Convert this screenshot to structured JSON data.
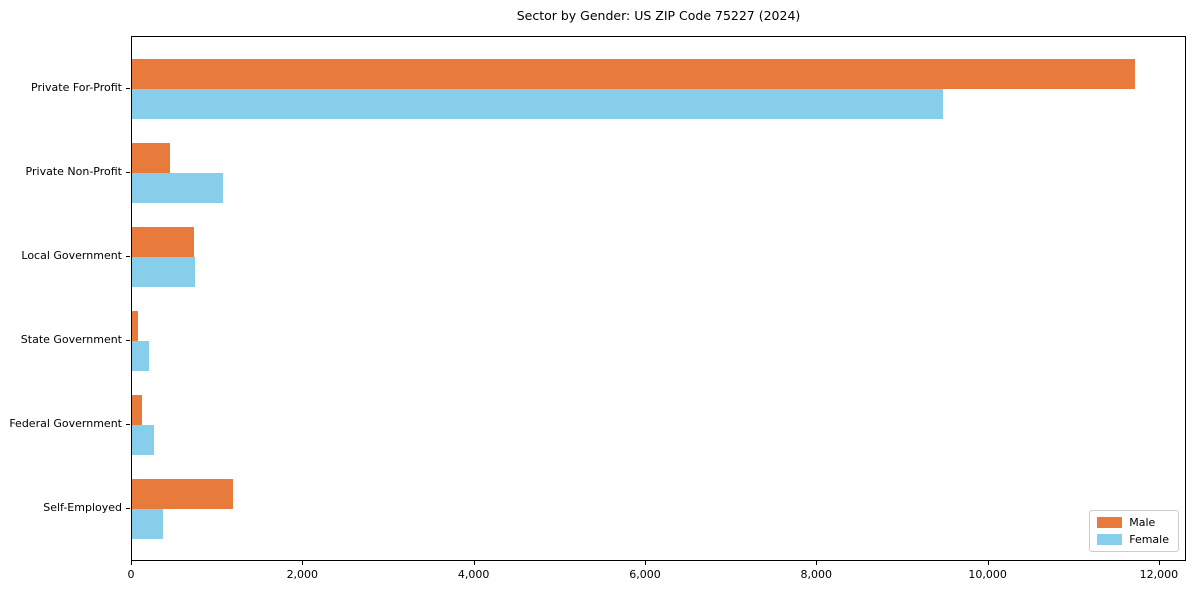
{
  "title": "Sector by Gender: US ZIP Code 75227 (2024)",
  "chart_data": {
    "type": "bar",
    "orientation": "horizontal",
    "title": "Sector by Gender: US ZIP Code 75227 (2024)",
    "xlabel": "",
    "ylabel": "",
    "categories": [
      "Private For-Profit",
      "Private Non-Profit",
      "Local Government",
      "State Government",
      "Federal Government",
      "Self-Employed"
    ],
    "series": [
      {
        "name": "Male",
        "color": "#e87b3c",
        "values": [
          11730,
          440,
          720,
          70,
          120,
          1180
        ]
      },
      {
        "name": "Female",
        "color": "#87ceeb",
        "values": [
          9480,
          1070,
          740,
          200,
          260,
          360
        ]
      }
    ],
    "xlim": [
      0,
      12316
    ],
    "xticks": [
      0,
      2000,
      4000,
      6000,
      8000,
      10000,
      12000
    ],
    "xtick_labels": [
      "0",
      "2,000",
      "4,000",
      "6,000",
      "8,000",
      "10,000",
      "12,000"
    ],
    "legend_position": "lower right",
    "grid": false,
    "background": "#ffffff",
    "axis_color": "#000000"
  },
  "legend": {
    "items": [
      {
        "label": "Male",
        "color": "#e87b3c"
      },
      {
        "label": "Female",
        "color": "#87ceeb"
      }
    ]
  }
}
